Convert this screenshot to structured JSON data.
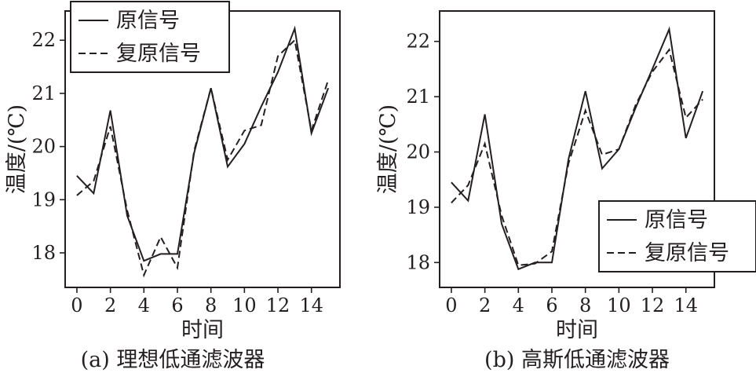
{
  "chart_data": [
    {
      "type": "line",
      "caption": "(a) 理想低通滤波器",
      "title": "",
      "xlabel": "时间",
      "ylabel": "温度/(℃)",
      "xlim": [
        -0.7,
        15.7
      ],
      "ylim": [
        17.35,
        22.55
      ],
      "xticks": [
        0,
        2,
        4,
        6,
        8,
        10,
        12,
        14
      ],
      "yticks": [
        18,
        19,
        20,
        21,
        22
      ],
      "legend_position": "top-left",
      "x": [
        0,
        1,
        2,
        3,
        4,
        5,
        6,
        7,
        8,
        9,
        10,
        11,
        12,
        13,
        14,
        15
      ],
      "series": [
        {
          "name": "原信号",
          "style": "solid",
          "values": [
            19.45,
            19.12,
            20.68,
            18.7,
            17.85,
            17.98,
            17.98,
            19.88,
            21.1,
            19.62,
            20.05,
            20.75,
            21.4,
            22.22,
            20.25,
            21.1
          ]
        },
        {
          "name": "复原信号",
          "style": "dashed",
          "values": [
            19.08,
            19.35,
            20.38,
            18.8,
            17.58,
            18.3,
            17.72,
            19.92,
            21.1,
            19.75,
            20.3,
            20.4,
            21.7,
            22.0,
            20.3,
            21.25
          ]
        }
      ]
    },
    {
      "type": "line",
      "caption": "(b) 高斯低通滤波器",
      "title": "",
      "xlabel": "时间",
      "ylabel": "温度/(℃)",
      "xlim": [
        -0.7,
        15.7
      ],
      "ylim": [
        17.55,
        22.55
      ],
      "xticks": [
        0,
        2,
        4,
        6,
        8,
        10,
        12,
        14
      ],
      "yticks": [
        18,
        19,
        20,
        21,
        22
      ],
      "legend_position": "bottom-right",
      "x": [
        0,
        1,
        2,
        3,
        4,
        5,
        6,
        7,
        8,
        9,
        10,
        11,
        12,
        13,
        14,
        15
      ],
      "series": [
        {
          "name": "原信号",
          "style": "solid",
          "values": [
            19.45,
            19.12,
            20.68,
            18.7,
            17.88,
            18.0,
            18.0,
            19.88,
            21.1,
            19.7,
            20.05,
            20.8,
            21.5,
            22.22,
            20.25,
            21.1
          ]
        },
        {
          "name": "复原信号",
          "style": "dashed",
          "values": [
            19.08,
            19.4,
            20.15,
            18.85,
            17.95,
            17.98,
            18.2,
            19.8,
            20.75,
            19.95,
            20.05,
            20.85,
            21.45,
            21.85,
            20.62,
            20.95
          ]
        }
      ]
    }
  ]
}
